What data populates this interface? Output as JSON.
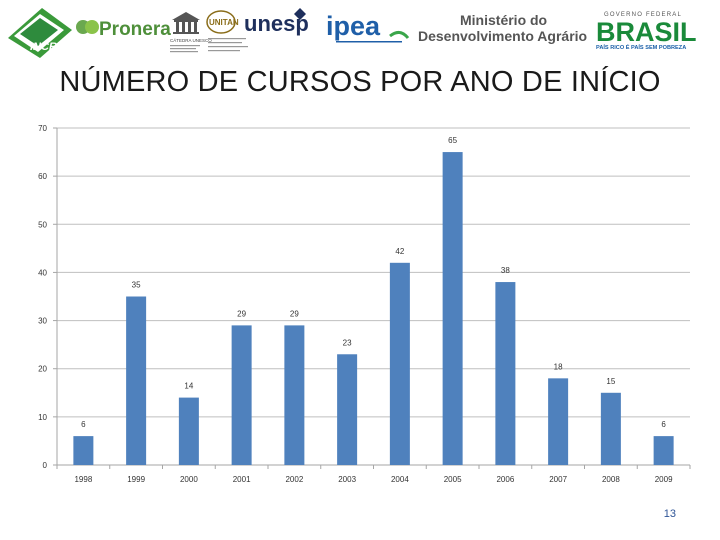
{
  "logos": {
    "incra": "INCRA",
    "pronera": "Pronera",
    "unesco_caption": "CÁTEDRA UNESCO",
    "unitan": "UNITAN",
    "unesp": "unesp",
    "ipea": "ipea",
    "mda_line1": "Ministério do",
    "mda_line2": "Desenvolvimento Agrário",
    "gov_caption": "GOVERNO FEDERAL",
    "brasil": "BRASIL",
    "brasil_slogan": "PAÍS RICO É PAÍS SEM POBREZA"
  },
  "colors": {
    "bar": "#4f81bd",
    "axis": "#a6a6a6",
    "grid": "#bfbfbf",
    "title": "#1a1a1a",
    "page_number": "#2f5597"
  },
  "chart_data": {
    "type": "bar",
    "title": "NÚMERO DE CURSOS POR ANO DE INÍCIO",
    "categories": [
      "1998",
      "1999",
      "2000",
      "2001",
      "2002",
      "2003",
      "2004",
      "2005",
      "2006",
      "2007",
      "2008",
      "2009"
    ],
    "values": [
      6,
      35,
      14,
      29,
      29,
      23,
      42,
      65,
      38,
      18,
      15,
      6
    ],
    "data_labels": [
      "6",
      "35",
      "14",
      "29",
      "29",
      "23",
      "42",
      "65",
      "38",
      "18",
      "15",
      "6"
    ],
    "y_ticks": [
      "0",
      "10",
      "20",
      "30",
      "40",
      "50",
      "60",
      "70"
    ],
    "ylim": [
      0,
      70
    ],
    "grid": true,
    "legend": "none"
  },
  "page_number": "13"
}
